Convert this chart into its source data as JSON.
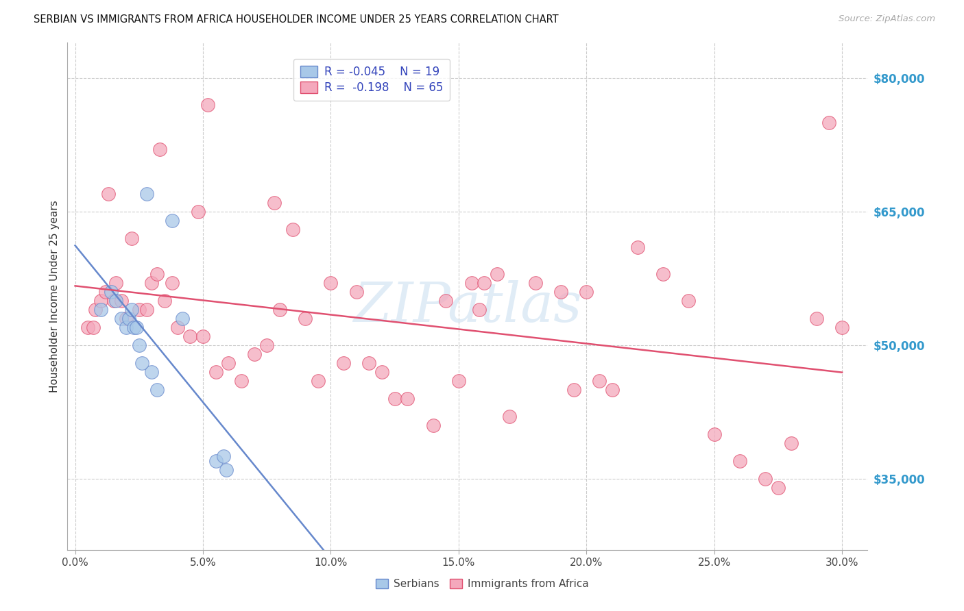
{
  "title": "SERBIAN VS IMMIGRANTS FROM AFRICA HOUSEHOLDER INCOME UNDER 25 YEARS CORRELATION CHART",
  "source": "Source: ZipAtlas.com",
  "ylabel": "Householder Income Under 25 years",
  "xlabel_ticks": [
    "0.0%",
    "5.0%",
    "10.0%",
    "15.0%",
    "20.0%",
    "25.0%",
    "30.0%"
  ],
  "xlabel_vals": [
    0.0,
    5.0,
    10.0,
    15.0,
    20.0,
    25.0,
    30.0
  ],
  "ytick_labels": [
    "$35,000",
    "$50,000",
    "$65,000",
    "$80,000"
  ],
  "ytick_vals": [
    35000,
    50000,
    65000,
    80000
  ],
  "ymin": 27000,
  "ymax": 84000,
  "xmin": -0.3,
  "xmax": 31.0,
  "legend_R_serbian": "R = -0.045",
  "legend_N_serbian": "N = 19",
  "legend_R_africa": "R =  -0.198",
  "legend_N_africa": "N = 65",
  "serbian_color": "#a8c8e8",
  "africa_color": "#f4a8bc",
  "trendline_serbian_color": "#6688cc",
  "trendline_africa_color": "#e05070",
  "watermark": "ZIPatlas",
  "serbian_x": [
    1.0,
    1.4,
    1.6,
    1.8,
    2.0,
    2.1,
    2.2,
    2.3,
    2.4,
    2.5,
    2.6,
    2.8,
    3.0,
    3.2,
    3.8,
    4.2,
    5.5,
    5.8,
    5.9
  ],
  "serbian_y": [
    54000,
    56000,
    55000,
    53000,
    52000,
    53000,
    54000,
    52000,
    52000,
    50000,
    48000,
    67000,
    47000,
    45000,
    64000,
    53000,
    37000,
    37500,
    36000
  ],
  "africa_x": [
    0.5,
    0.7,
    0.8,
    1.0,
    1.2,
    1.3,
    1.5,
    1.6,
    1.8,
    2.0,
    2.2,
    2.5,
    2.8,
    3.0,
    3.2,
    3.5,
    3.8,
    4.0,
    4.5,
    4.8,
    5.0,
    5.5,
    6.0,
    6.5,
    7.0,
    7.5,
    8.0,
    8.5,
    9.0,
    9.5,
    10.0,
    10.5,
    11.0,
    11.5,
    12.0,
    12.5,
    13.0,
    14.0,
    14.5,
    15.0,
    15.5,
    16.0,
    16.5,
    17.0,
    18.0,
    19.0,
    19.5,
    20.0,
    20.5,
    21.0,
    22.0,
    23.0,
    24.0,
    25.0,
    26.0,
    27.0,
    27.5,
    28.0,
    29.0,
    29.5,
    30.0,
    3.3,
    5.2,
    7.8,
    15.8
  ],
  "africa_y": [
    52000,
    52000,
    54000,
    55000,
    56000,
    67000,
    55000,
    57000,
    55000,
    53000,
    62000,
    54000,
    54000,
    57000,
    58000,
    55000,
    57000,
    52000,
    51000,
    65000,
    51000,
    47000,
    48000,
    46000,
    49000,
    50000,
    54000,
    63000,
    53000,
    46000,
    57000,
    48000,
    56000,
    48000,
    47000,
    44000,
    44000,
    41000,
    55000,
    46000,
    57000,
    57000,
    58000,
    42000,
    57000,
    56000,
    45000,
    56000,
    46000,
    45000,
    61000,
    58000,
    55000,
    40000,
    37000,
    35000,
    34000,
    39000,
    53000,
    75000,
    52000,
    72000,
    77000,
    66000,
    54000
  ]
}
